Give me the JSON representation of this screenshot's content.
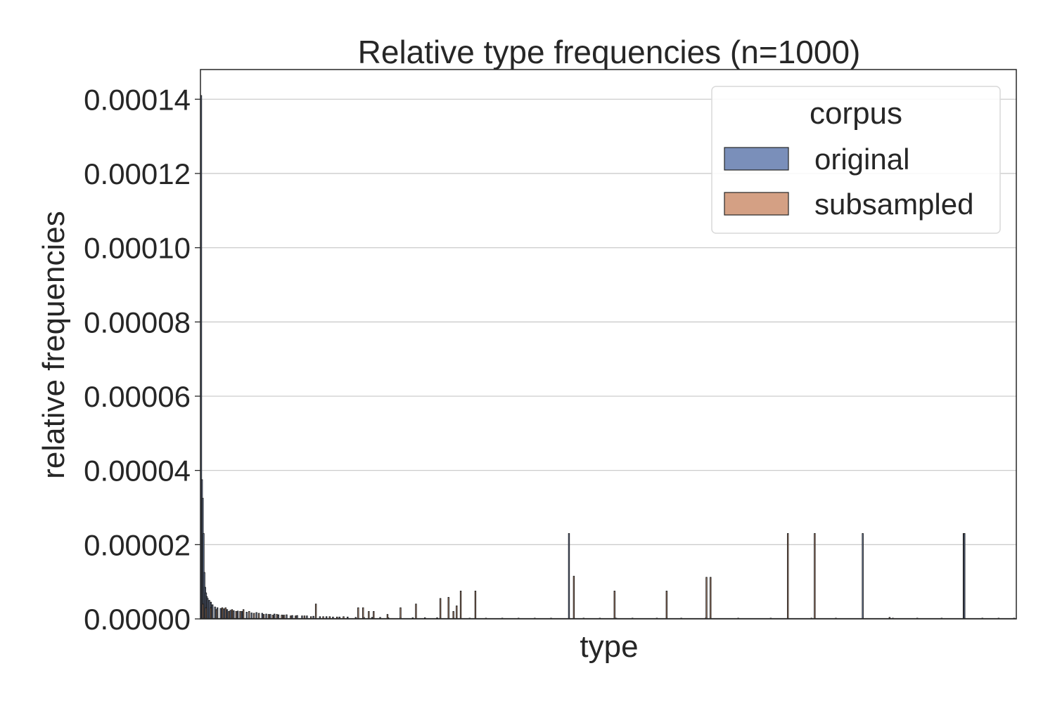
{
  "chart_data": {
    "type": "bar",
    "title": "Relative type frequencies (n=1000)",
    "xlabel": "type",
    "ylabel": "relative frequencies",
    "ylim": [
      0,
      0.000148
    ],
    "yticks": [
      "0.00000",
      "0.00002",
      "0.00004",
      "0.00006",
      "0.00008",
      "0.00010",
      "0.00012",
      "0.00014"
    ],
    "ytick_values": [
      0,
      2e-05,
      4e-05,
      6e-05,
      8e-05,
      0.0001,
      0.00012,
      0.00014
    ],
    "grid": "horizontal",
    "legend": {
      "title": "corpus",
      "placement": "top-right",
      "entries": [
        {
          "name": "original",
          "color": "#7a8fba"
        },
        {
          "name": "subsampled",
          "color": "#d4a084"
        }
      ]
    },
    "x_domain": [
      0,
      1000
    ],
    "series": [
      {
        "name": "original",
        "color": "#7a8fba",
        "points": [
          [
            0,
            0.000141
          ],
          [
            1,
            3.75e-05
          ],
          [
            2,
            3.25e-05
          ],
          [
            3,
            2.3e-05
          ],
          [
            4,
            1.25e-05
          ],
          [
            5,
            8.5e-06
          ],
          [
            6,
            7e-06
          ],
          [
            7,
            6e-06
          ],
          [
            8,
            5.5e-06
          ],
          [
            10,
            5e-06
          ],
          [
            12,
            4.5e-06
          ],
          [
            14,
            3.8e-06
          ],
          [
            17,
            3.2e-06
          ],
          [
            20,
            3e-06
          ],
          [
            24,
            2.8e-06
          ],
          [
            28,
            2.7e-06
          ],
          [
            32,
            2.5e-06
          ],
          [
            36,
            2.3e-06
          ],
          [
            40,
            2.2e-06
          ],
          [
            45,
            2.1e-06
          ],
          [
            50,
            2e-06
          ],
          [
            56,
            1.8e-06
          ],
          [
            62,
            1.6e-06
          ],
          [
            68,
            1.7e-06
          ],
          [
            75,
            1.5e-06
          ],
          [
            80,
            1.3e-06
          ],
          [
            85,
            1.2e-06
          ],
          [
            90,
            1.3e-06
          ],
          [
            95,
            1.1e-06
          ],
          [
            100,
            1e-06
          ],
          [
            105,
            1.1e-06
          ],
          [
            112,
            9e-07
          ],
          [
            118,
            9e-07
          ],
          [
            124,
            8e-07
          ],
          [
            130,
            8e-07
          ],
          [
            138,
            7e-07
          ],
          [
            146,
            6e-07
          ],
          [
            154,
            6e-07
          ],
          [
            162,
            5e-07
          ],
          [
            170,
            5e-07
          ],
          [
            180,
            5e-07
          ],
          [
            190,
            4e-07
          ],
          [
            200,
            4e-07
          ],
          [
            210,
            4e-07
          ],
          [
            220,
            4e-07
          ],
          [
            230,
            3e-07
          ],
          [
            245,
            3e-07
          ],
          [
            260,
            3e-07
          ],
          [
            275,
            3e-07
          ],
          [
            290,
            3e-07
          ],
          [
            310,
            3e-07
          ],
          [
            330,
            2e-07
          ],
          [
            350,
            2e-07
          ],
          [
            370,
            2e-07
          ],
          [
            390,
            2e-07
          ],
          [
            410,
            2e-07
          ],
          [
            430,
            2e-07
          ],
          [
            452,
            2.3e-05
          ],
          [
            470,
            2e-07
          ],
          [
            490,
            2e-07
          ],
          [
            510,
            2e-07
          ],
          [
            530,
            2e-07
          ],
          [
            560,
            2e-07
          ],
          [
            590,
            2e-07
          ],
          [
            620,
            2e-07
          ],
          [
            660,
            2e-07
          ],
          [
            700,
            2e-07
          ],
          [
            750,
            2e-07
          ],
          [
            780,
            2e-07
          ],
          [
            813,
            2.3e-05
          ],
          [
            850,
            2e-07
          ],
          [
            880,
            2e-07
          ],
          [
            910,
            2e-07
          ],
          [
            937,
            2.3e-05
          ],
          [
            938,
            2.3e-05
          ],
          [
            960,
            2e-07
          ],
          [
            980,
            2e-07
          ],
          [
            999,
            2e-07
          ]
        ]
      },
      {
        "name": "subsampled",
        "color": "#d4a084",
        "points": [
          [
            2,
            4e-06
          ],
          [
            6,
            3e-06
          ],
          [
            12,
            3e-06
          ],
          [
            19,
            2.5e-06
          ],
          [
            26,
            3e-06
          ],
          [
            30,
            3e-06
          ],
          [
            34,
            2e-06
          ],
          [
            38,
            2.5e-06
          ],
          [
            43,
            2e-06
          ],
          [
            48,
            2e-06
          ],
          [
            52,
            2.5e-06
          ],
          [
            59,
            2e-06
          ],
          [
            65,
            1.5e-06
          ],
          [
            71,
            1.5e-06
          ],
          [
            77,
            1.2e-06
          ],
          [
            83,
            1.2e-06
          ],
          [
            88,
            1e-06
          ],
          [
            93,
            1.2e-06
          ],
          [
            99,
            1e-06
          ],
          [
            102,
            1e-06
          ],
          [
            110,
            8e-07
          ],
          [
            116,
            8e-07
          ],
          [
            127,
            8e-07
          ],
          [
            135,
            6e-07
          ],
          [
            141,
            4e-06
          ],
          [
            150,
            6e-07
          ],
          [
            158,
            6e-07
          ],
          [
            167,
            5e-07
          ],
          [
            175,
            6e-07
          ],
          [
            193,
            3e-06
          ],
          [
            199,
            3e-06
          ],
          [
            206,
            2e-06
          ],
          [
            212,
            2e-06
          ],
          [
            229,
            1.2e-06
          ],
          [
            245,
            3e-06
          ],
          [
            264,
            4e-06
          ],
          [
            294,
            5.5e-06
          ],
          [
            304,
            5.8e-06
          ],
          [
            310,
            2e-06
          ],
          [
            314,
            3.5e-06
          ],
          [
            319,
            7.5e-06
          ],
          [
            337,
            7.5e-06
          ],
          [
            458,
            1.15e-05
          ],
          [
            508,
            7.5e-06
          ],
          [
            572,
            7.5e-06
          ],
          [
            621,
            1.12e-05
          ],
          [
            626,
            1.12e-05
          ],
          [
            721,
            2.3e-05
          ],
          [
            754,
            2.3e-05
          ],
          [
            846,
            4e-07
          ]
        ]
      }
    ]
  }
}
